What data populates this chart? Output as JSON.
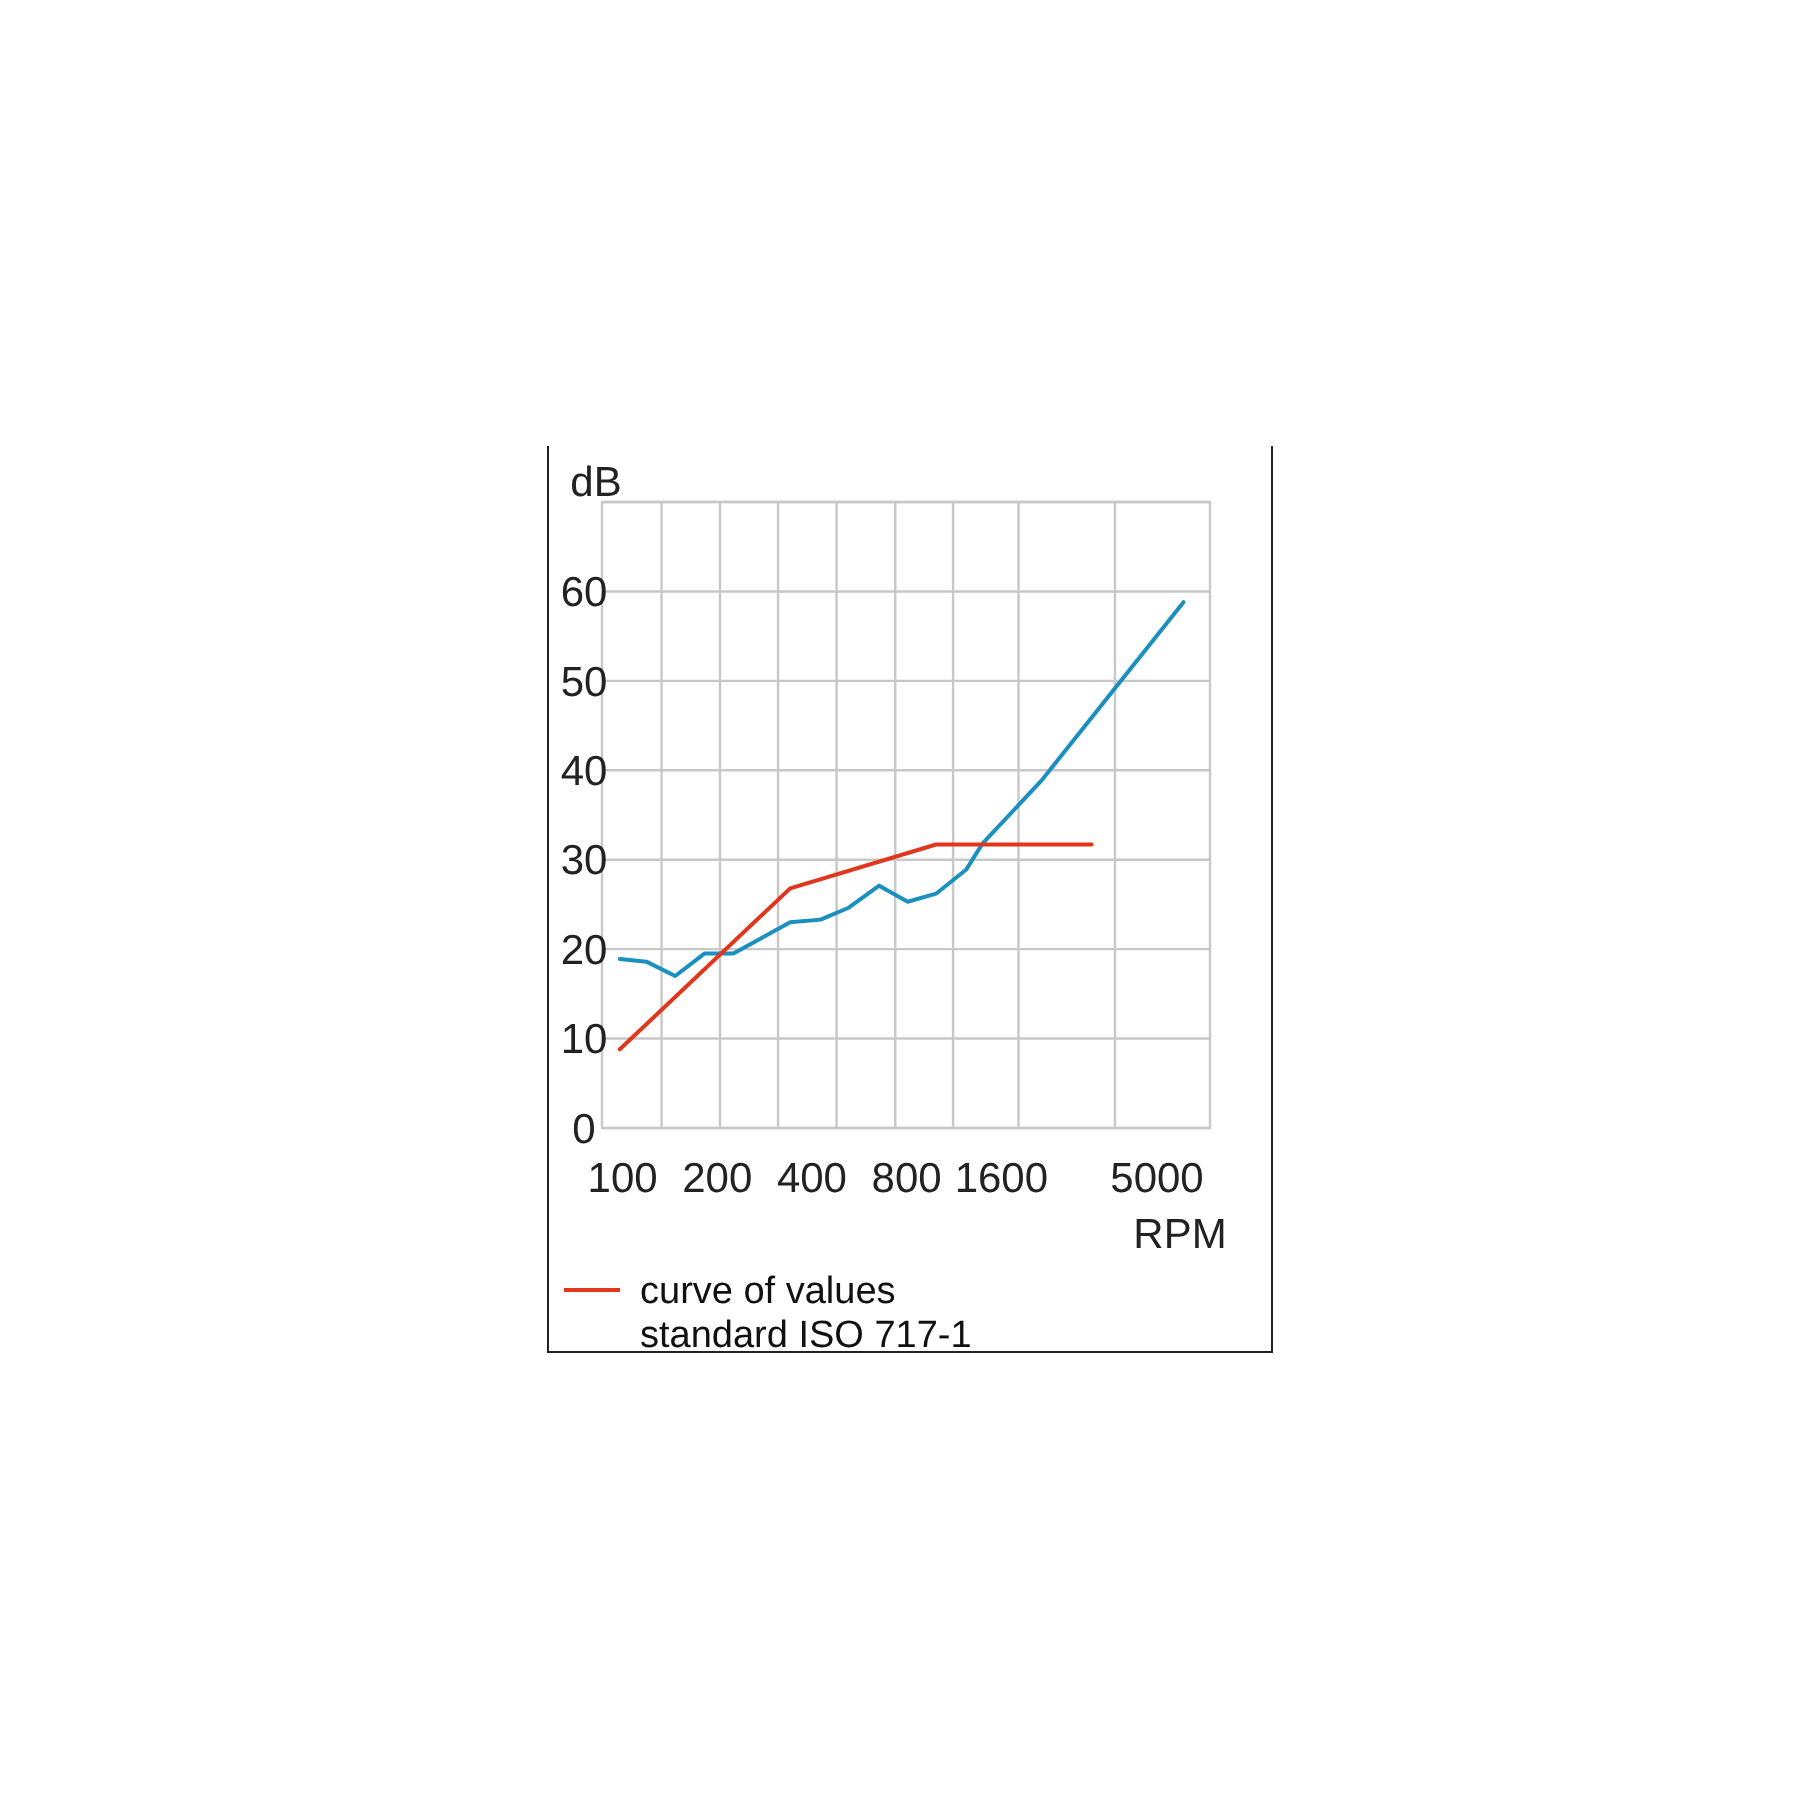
{
  "chart_data": {
    "type": "line",
    "xlabel": "RPM",
    "ylabel": "dB",
    "xlim": [
      86,
      7370
    ],
    "log": "x",
    "xticks": [
      100,
      200,
      400,
      800,
      1600,
      5000,
      {
        "value": 133,
        "label": null
      },
      {
        "value": 204,
        "label": null
      },
      {
        "value": 312,
        "label": null
      },
      {
        "value": 479,
        "label": null
      },
      {
        "value": 736,
        "label": null
      },
      {
        "value": 1124,
        "label": null
      },
      {
        "value": 1814,
        "label": null
      },
      {
        "value": 3675,
        "label": null
      }
    ],
    "ylim": [
      0,
      70
    ],
    "yticks": [
      0,
      10,
      20,
      30,
      40,
      50,
      60,
      {
        "value": 70,
        "label": null
      }
    ],
    "grid": true,
    "legend": "bottom",
    "marker": "none",
    "line_style": "solid",
    "series": [
      {
        "color": "#1a8fc0",
        "x": [
          98,
          119,
          147,
          182,
          225,
          275,
          341,
          426,
          521,
          654,
          806,
          992,
          1238,
          1393,
          2152,
          6069
        ],
        "values": [
          18.9,
          18.6,
          17.0,
          19.5,
          19.5,
          21.2,
          23.0,
          23.3,
          24.6,
          27.1,
          25.3,
          26.2,
          28.9,
          31.8,
          38.9,
          58.8
        ]
      },
      {
        "name": "curve of values standard ISO 717-1",
        "color": "#e0361c",
        "x": [
          98,
          341,
          992,
          3098
        ],
        "values": [
          8.8,
          26.8,
          31.7,
          31.7
        ]
      }
    ]
  }
}
